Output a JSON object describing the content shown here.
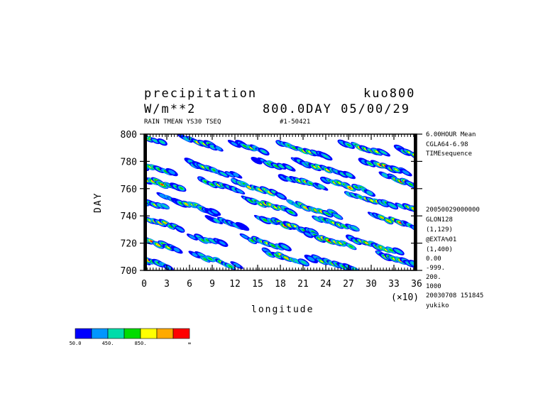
{
  "header": {
    "title_left": "precipitation",
    "title_right": "kuo800",
    "units": "W/m**2",
    "time_label": "800.0DAY 05/00/29",
    "subtitle": "RAIN TMEAN YS30 TSEQ",
    "run_id": "#1-50421"
  },
  "side_info": {
    "top": [
      "6.00HOUR Mean",
      "CGLA64-6.98",
      "TIMEsequence"
    ],
    "middle": [
      "20050029000000",
      "GLON128",
      "(1,129)",
      "@EXTA%01",
      "(1,400)",
      "0.00",
      "-999.",
      "200.",
      "1000",
      "20030708 151845",
      "yukiko"
    ]
  },
  "chart_data": {
    "type": "heatmap",
    "title": "precipitation",
    "xlabel": "longitude",
    "ylabel": "DAY",
    "x_unit_note": "(×10)",
    "xlim": [
      0,
      360
    ],
    "ylim": [
      700,
      800
    ],
    "x_ticks": [
      0,
      3,
      6,
      9,
      12,
      15,
      18,
      21,
      24,
      27,
      30,
      33,
      36
    ],
    "y_ticks": [
      700,
      720,
      740,
      760,
      780,
      800
    ],
    "contour_levels": [
      50,
      250,
      450,
      650,
      850,
      1050,
      1250
    ],
    "colors": [
      "#0000ff",
      "#0096ff",
      "#00dcaa",
      "#00dc00",
      "#ffff00",
      "#ffaa00",
      "#ff0000"
    ],
    "colorbar_labels": [
      "50.0",
      "450.",
      "850.",
      "∞"
    ],
    "colorbar_label_indices": [
      0,
      2,
      4,
      7
    ],
    "bands": [
      {
        "lon": 3,
        "day": 797,
        "len": 40,
        "slope": -0.15,
        "peak": 6
      },
      {
        "lon": 75,
        "day": 794,
        "len": 50,
        "slope": -0.15,
        "peak": 5
      },
      {
        "lon": 140,
        "day": 790,
        "len": 40,
        "slope": -0.14,
        "peak": 4
      },
      {
        "lon": 210,
        "day": 788,
        "len": 60,
        "slope": -0.16,
        "peak": 5
      },
      {
        "lon": 290,
        "day": 790,
        "len": 50,
        "slope": -0.15,
        "peak": 6
      },
      {
        "lon": 355,
        "day": 786,
        "len": 35,
        "slope": -0.2,
        "peak": 6
      },
      {
        "lon": 10,
        "day": 775,
        "len": 50,
        "slope": -0.15,
        "peak": 5
      },
      {
        "lon": 90,
        "day": 774,
        "len": 60,
        "slope": -0.16,
        "peak": 4
      },
      {
        "lon": 170,
        "day": 778,
        "len": 40,
        "slope": -0.13,
        "peak": 3
      },
      {
        "lon": 235,
        "day": 775,
        "len": 70,
        "slope": -0.15,
        "peak": 5
      },
      {
        "lon": 320,
        "day": 776,
        "len": 55,
        "slope": -0.15,
        "peak": 6
      },
      {
        "lon": 20,
        "day": 764,
        "len": 60,
        "slope": -0.15,
        "peak": 6
      },
      {
        "lon": 100,
        "day": 762,
        "len": 50,
        "slope": -0.15,
        "peak": 4
      },
      {
        "lon": 150,
        "day": 760,
        "len": 60,
        "slope": -0.15,
        "peak": 6
      },
      {
        "lon": 210,
        "day": 765,
        "len": 50,
        "slope": -0.15,
        "peak": 5
      },
      {
        "lon": 270,
        "day": 762,
        "len": 60,
        "slope": -0.16,
        "peak": 5
      },
      {
        "lon": 340,
        "day": 766,
        "len": 40,
        "slope": -0.18,
        "peak": 5
      },
      {
        "lon": 5,
        "day": 750,
        "len": 45,
        "slope": -0.15,
        "peak": 5
      },
      {
        "lon": 60,
        "day": 748,
        "len": 70,
        "slope": -0.16,
        "peak": 4
      },
      {
        "lon": 165,
        "day": 748,
        "len": 60,
        "slope": -0.15,
        "peak": 6
      },
      {
        "lon": 225,
        "day": 745,
        "len": 60,
        "slope": -0.15,
        "peak": 6
      },
      {
        "lon": 300,
        "day": 752,
        "len": 55,
        "slope": -0.15,
        "peak": 5
      },
      {
        "lon": 355,
        "day": 745,
        "len": 30,
        "slope": -0.2,
        "peak": 6
      },
      {
        "lon": 20,
        "day": 735,
        "len": 55,
        "slope": -0.15,
        "peak": 5
      },
      {
        "lon": 110,
        "day": 735,
        "len": 40,
        "slope": -0.15,
        "peak": 3
      },
      {
        "lon": 190,
        "day": 733,
        "len": 70,
        "slope": -0.15,
        "peak": 6
      },
      {
        "lon": 255,
        "day": 734,
        "len": 50,
        "slope": -0.15,
        "peak": 5
      },
      {
        "lon": 330,
        "day": 736,
        "len": 55,
        "slope": -0.17,
        "peak": 6
      },
      {
        "lon": 15,
        "day": 720,
        "len": 60,
        "slope": -0.15,
        "peak": 6
      },
      {
        "lon": 85,
        "day": 722,
        "len": 40,
        "slope": -0.13,
        "peak": 3
      },
      {
        "lon": 160,
        "day": 720,
        "len": 50,
        "slope": -0.15,
        "peak": 5
      },
      {
        "lon": 245,
        "day": 722,
        "len": 55,
        "slope": -0.15,
        "peak": 6
      },
      {
        "lon": 305,
        "day": 718,
        "len": 60,
        "slope": -0.16,
        "peak": 6
      },
      {
        "lon": 10,
        "day": 706,
        "len": 45,
        "slope": -0.15,
        "peak": 5
      },
      {
        "lon": 95,
        "day": 707,
        "len": 55,
        "slope": -0.15,
        "peak": 4
      },
      {
        "lon": 185,
        "day": 710,
        "len": 50,
        "slope": -0.15,
        "peak": 5
      },
      {
        "lon": 250,
        "day": 705,
        "len": 55,
        "slope": -0.15,
        "peak": 5
      },
      {
        "lon": 335,
        "day": 708,
        "len": 45,
        "slope": -0.17,
        "peak": 6
      }
    ]
  }
}
